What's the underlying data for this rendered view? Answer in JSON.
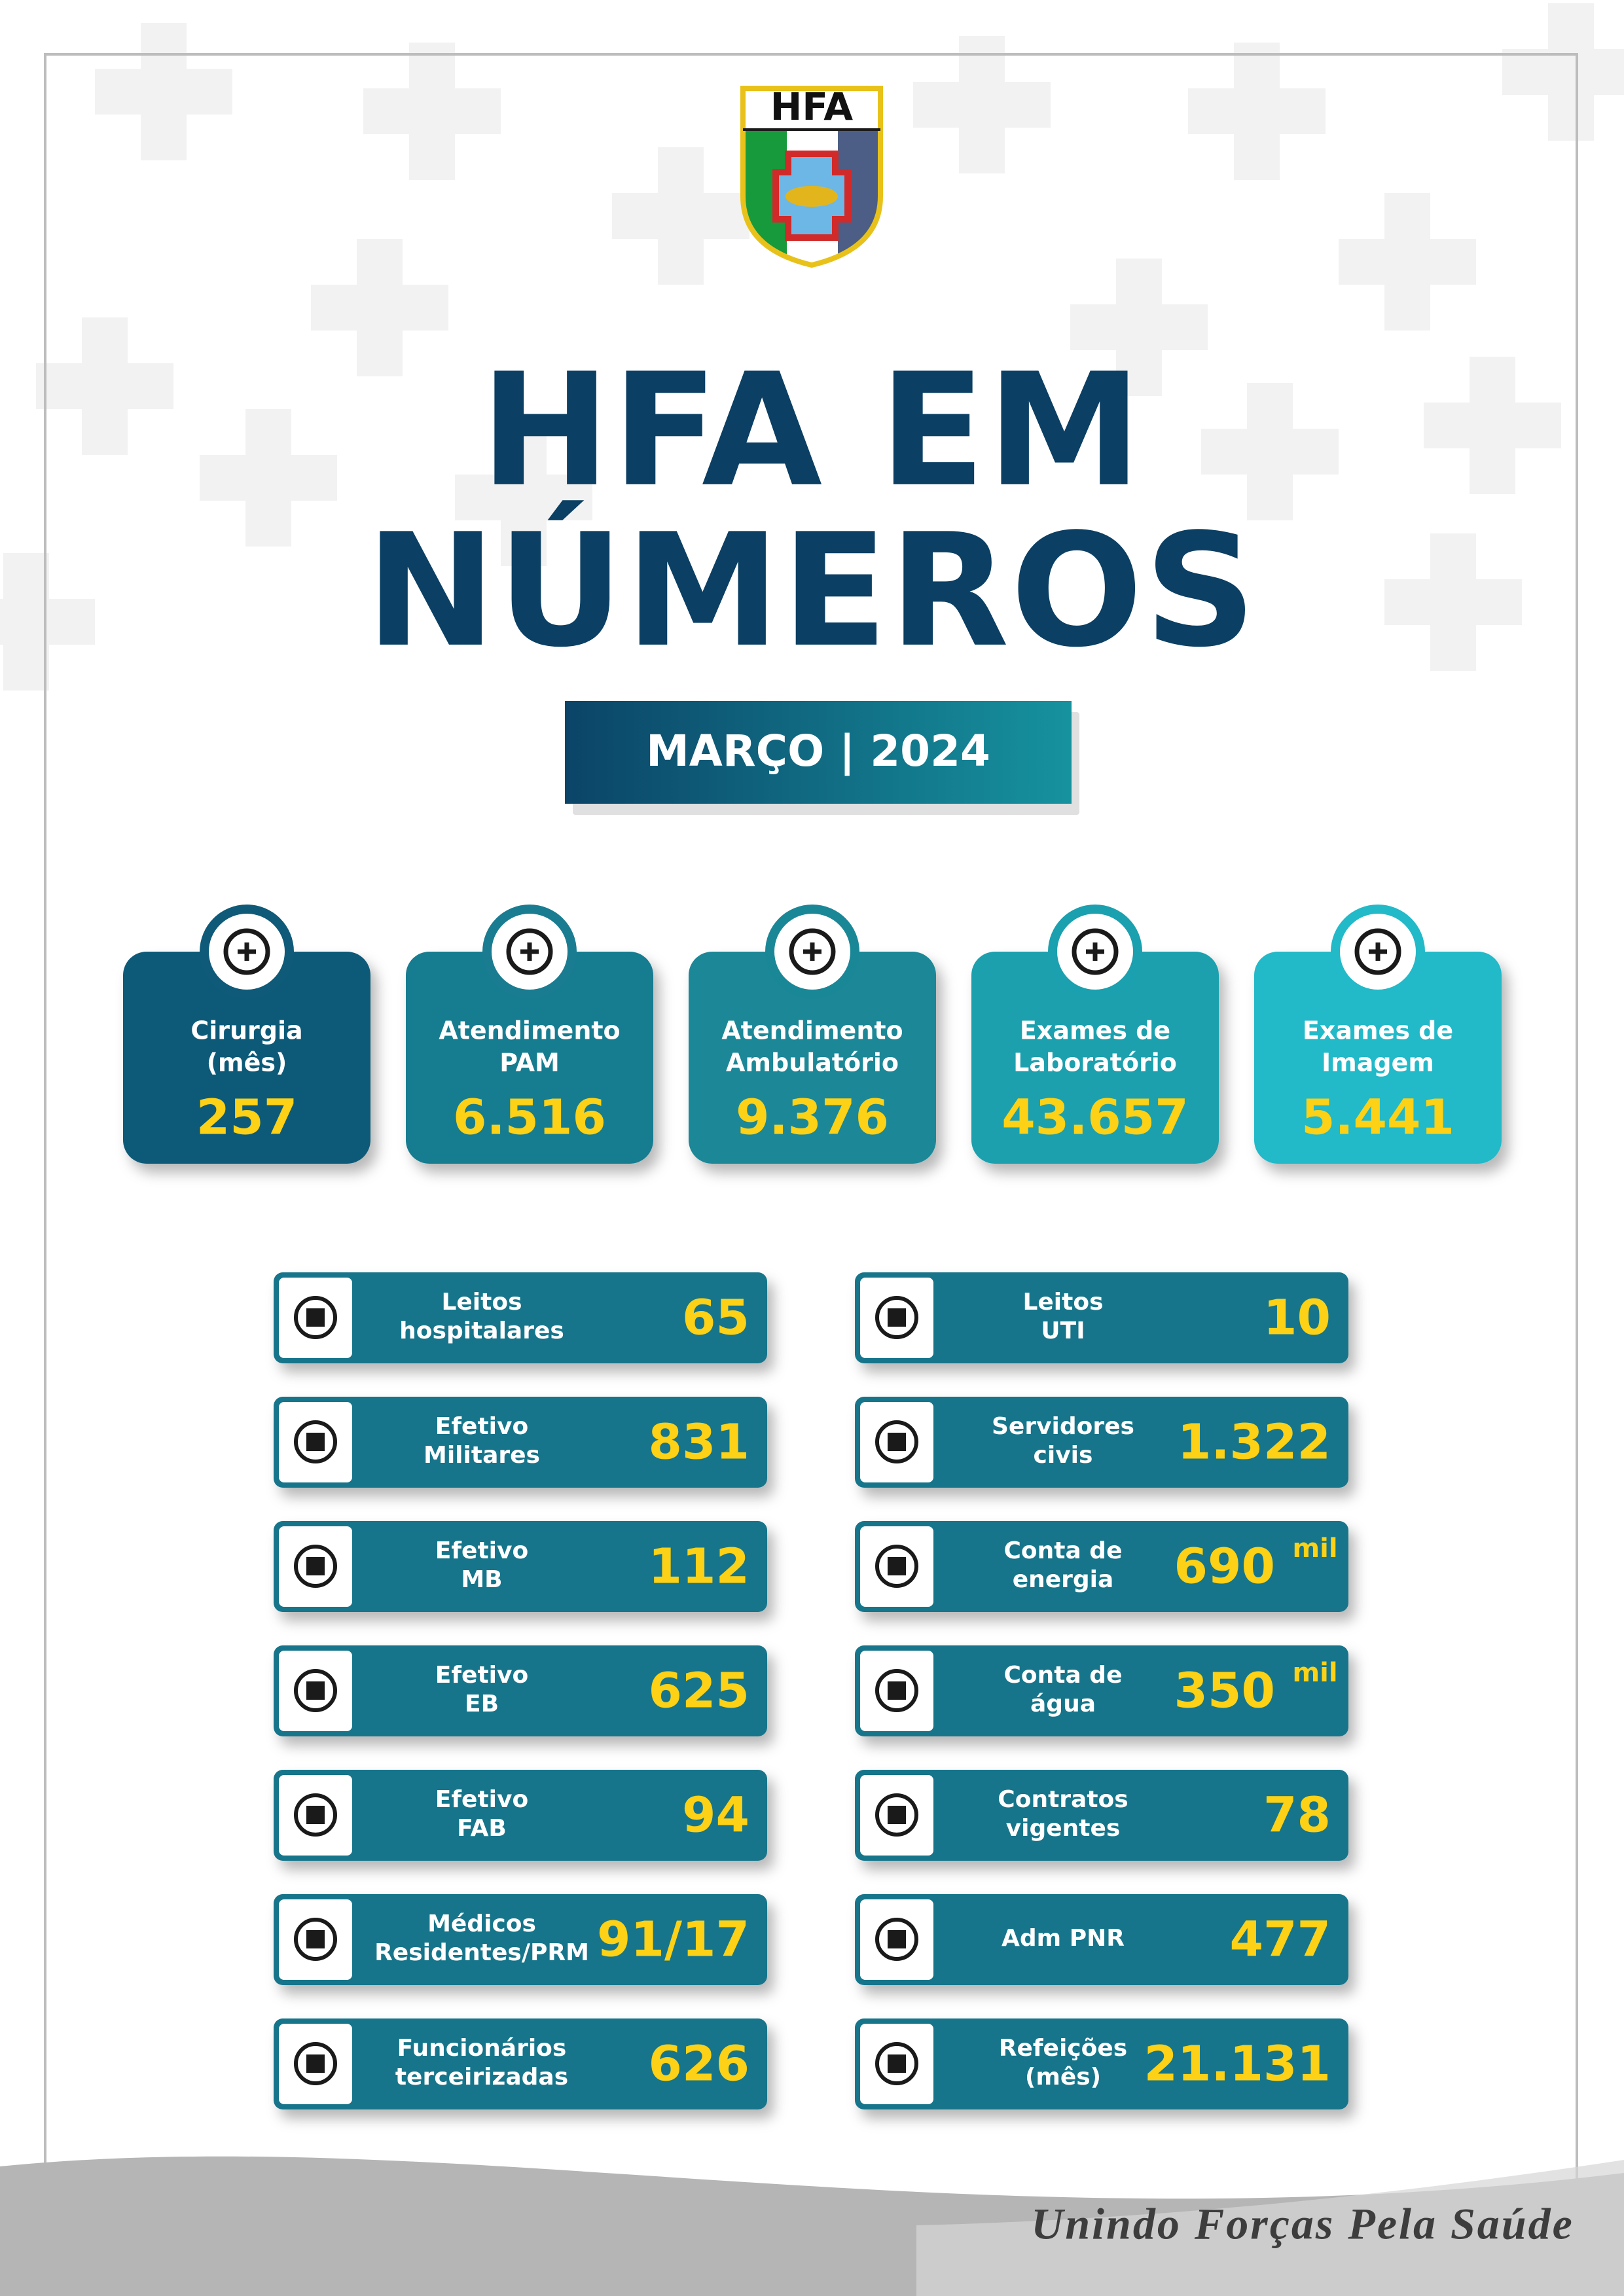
{
  "logo": {
    "text": "HFA"
  },
  "header": {
    "title_lines": [
      "HFA EM",
      "NÚMEROS"
    ],
    "subtitle": "MARÇO | 2024"
  },
  "cards": [
    {
      "label_lines": [
        "Cirurgia",
        "(mês)"
      ],
      "value": "257"
    },
    {
      "label_lines": [
        "Atendimento",
        "PAM"
      ],
      "value": "6.516"
    },
    {
      "label_lines": [
        "Atendimento",
        "Ambulatório"
      ],
      "value": "9.376"
    },
    {
      "label_lines": [
        "Exames de",
        "Laboratório"
      ],
      "value": "43.657"
    },
    {
      "label_lines": [
        "Exames de",
        "Imagem"
      ],
      "value": "5.441"
    }
  ],
  "stats": {
    "left": [
      {
        "label_lines": [
          "Leitos",
          "hospitalares"
        ],
        "value": "65"
      },
      {
        "label_lines": [
          "Efetivo",
          "Militares"
        ],
        "value": "831"
      },
      {
        "label_lines": [
          "Efetivo",
          "MB"
        ],
        "value": "112"
      },
      {
        "label_lines": [
          "Efetivo",
          "EB"
        ],
        "value": "625"
      },
      {
        "label_lines": [
          "Efetivo",
          "FAB"
        ],
        "value": "94"
      },
      {
        "label_lines": [
          "Médicos",
          "Residentes/PRM"
        ],
        "value": "91/17"
      },
      {
        "label_lines": [
          "Funcionários",
          "terceirizadas"
        ],
        "value": "626"
      }
    ],
    "right": [
      {
        "label_lines": [
          "Leitos",
          "UTI"
        ],
        "value": "10"
      },
      {
        "label_lines": [
          "Servidores",
          "civis"
        ],
        "value": "1.322"
      },
      {
        "label_lines": [
          "Conta de",
          "energia"
        ],
        "value": "690",
        "unit": "mil"
      },
      {
        "label_lines": [
          "Conta de",
          "água"
        ],
        "value": "350",
        "unit": "mil"
      },
      {
        "label_lines": [
          "Contratos",
          "vigentes"
        ],
        "value": "78"
      },
      {
        "label_lines": [
          "Adm PNR"
        ],
        "value": "477"
      },
      {
        "label_lines": [
          "Refeições",
          "(mês)"
        ],
        "value": "21.131"
      }
    ]
  },
  "footer": {
    "slogan": "Unindo Forças Pela Saúde"
  }
}
